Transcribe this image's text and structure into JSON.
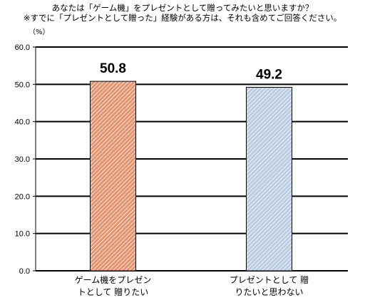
{
  "header": {
    "title_line1": "あなたは「ゲーム機」をプレゼントとして贈ってみたいと思いますか？",
    "title_line2": "※すでに「プレゼントとして贈った」経験がある方は、それも含めてご回答ください。"
  },
  "chart_data": {
    "type": "bar",
    "unit_label": "（%）",
    "categories": [
      [
        "ゲーム機をプレゼン",
        "トとして 贈りたい"
      ],
      [
        "プレゼントとして 贈",
        "りたいと思わない"
      ]
    ],
    "values": [
      50.8,
      49.2
    ],
    "value_labels": [
      "50.8",
      "49.2"
    ],
    "ylim": [
      0,
      60
    ],
    "yticks": [
      "0.0",
      "10.0",
      "20.0",
      "30.0",
      "40.0",
      "50.0",
      "60.0"
    ],
    "grid": true,
    "bar_colors": [
      "#e8916a",
      "#b8cbe0"
    ],
    "hatch_stroke": [
      "#ffffff",
      "#ffffff"
    ]
  }
}
